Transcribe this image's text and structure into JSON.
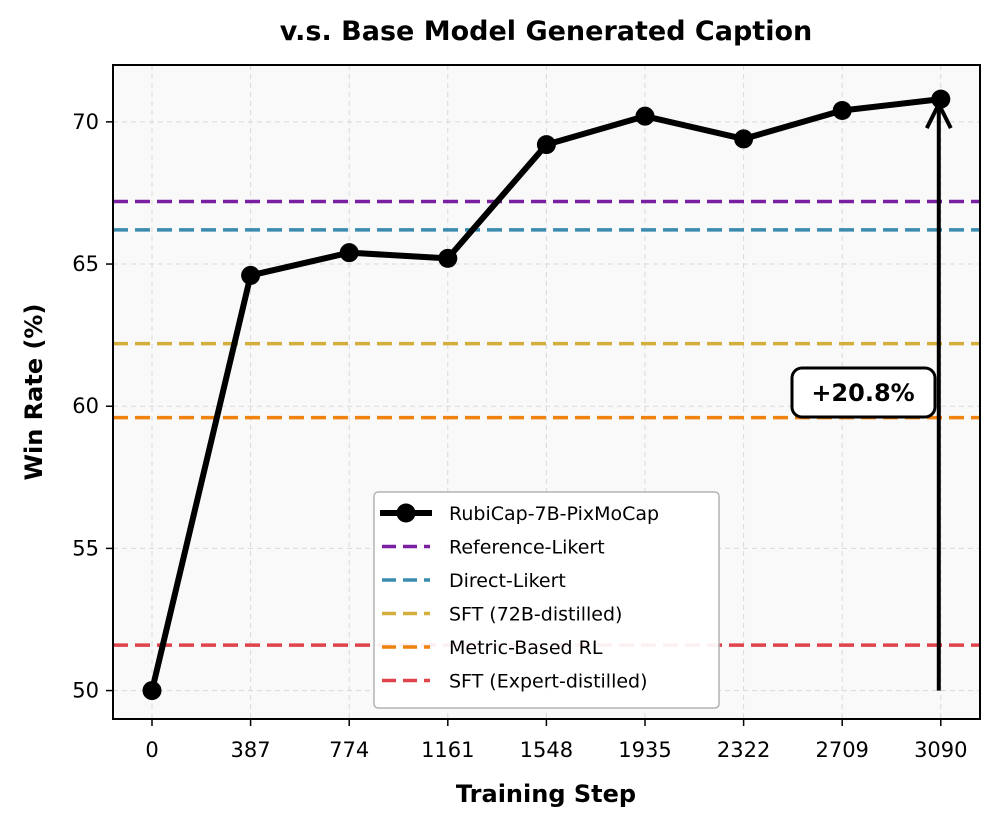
{
  "chart_data": {
    "type": "line",
    "title": "v.s. Base Model Generated Caption",
    "xlabel": "Training Step",
    "ylabel": "Win Rate (%)",
    "x_ticks": [
      "0",
      "387",
      "774",
      "1161",
      "1548",
      "1935",
      "2322",
      "2709",
      "3090"
    ],
    "y_ticks": [
      50,
      55,
      60,
      65,
      70
    ],
    "ylim": [
      49,
      72
    ],
    "grid": true,
    "legend_position": "lower-center",
    "series": [
      {
        "name": "RubiCap-7B-PixMoCap",
        "color": "#000000",
        "x": [
          "0",
          "387",
          "774",
          "1161",
          "1548",
          "1935",
          "2322",
          "2709",
          "3090"
        ],
        "values": [
          50.0,
          64.6,
          65.4,
          65.2,
          69.2,
          70.2,
          69.4,
          70.4,
          70.8
        ]
      }
    ],
    "baselines": [
      {
        "name": "Reference-Likert",
        "value": 67.2,
        "color": "#7b1fa2"
      },
      {
        "name": "Direct-Likert",
        "value": 66.2,
        "color": "#3a8bb0"
      },
      {
        "name": "SFT (72B-distilled)",
        "value": 62.2,
        "color": "#d4ae3c"
      },
      {
        "name": "Metric-Based RL",
        "value": 59.6,
        "color": "#f0820f"
      },
      {
        "name": "SFT (Expert-distilled)",
        "value": 51.6,
        "color": "#e0434b"
      }
    ],
    "annotation": {
      "text": "+20.8%",
      "arrow_from": 50.0,
      "arrow_to": 70.8
    }
  }
}
